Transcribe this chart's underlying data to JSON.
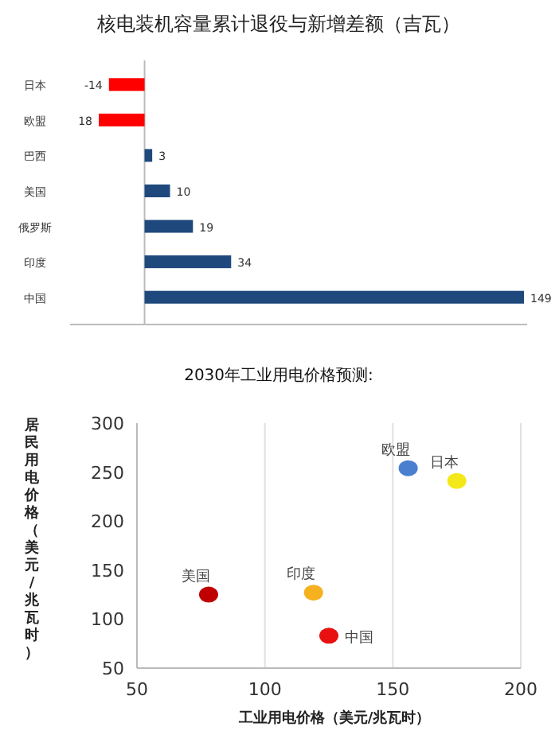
{
  "chart_data": [
    {
      "type": "bar",
      "orientation": "horizontal",
      "title": "核电装机容量累计退役与新增差额（吉瓦）",
      "categories": [
        "日本",
        "欧盟",
        "巴西",
        "美国",
        "俄罗斯",
        "印度",
        "中国"
      ],
      "values": [
        -14,
        -18,
        3,
        10,
        19,
        34,
        149
      ],
      "colors": [
        "#ff0000",
        "#ff0000",
        "#1f497d",
        "#1f497d",
        "#1f497d",
        "#1f497d",
        "#1f497d"
      ],
      "value_labels": [
        "-14",
        null,
        "3",
        "10",
        "19",
        "34",
        "149"
      ],
      "annotations": [
        {
          "text": "18",
          "x": -18,
          "y": "欧盟"
        }
      ]
    },
    {
      "type": "scatter",
      "title": "2030年工业用电价格预测:",
      "xlabel": "工业用电价格（美元/兆瓦时）",
      "ylabel": "居民用电价格（美元/兆瓦时）",
      "xlim": [
        50,
        200
      ],
      "ylim": [
        50,
        300
      ],
      "xticks": [
        50,
        100,
        150,
        200
      ],
      "yticks": [
        50,
        100,
        150,
        200,
        250,
        300
      ],
      "grid": "x",
      "marker": "circle",
      "series": [
        {
          "name": "美国",
          "color": "#c00000",
          "x": [
            78
          ],
          "values": [
            125
          ]
        },
        {
          "name": "印度",
          "color": "#f5b120",
          "x": [
            119
          ],
          "values": [
            127
          ]
        },
        {
          "name": "中国",
          "color": "#e81010",
          "x": [
            125
          ],
          "values": [
            83
          ]
        },
        {
          "name": "欧盟",
          "color": "#4a7fd0",
          "x": [
            156
          ],
          "values": [
            254
          ]
        },
        {
          "name": "日本",
          "color": "#f5e81a",
          "x": [
            175
          ],
          "values": [
            241
          ]
        }
      ]
    }
  ]
}
